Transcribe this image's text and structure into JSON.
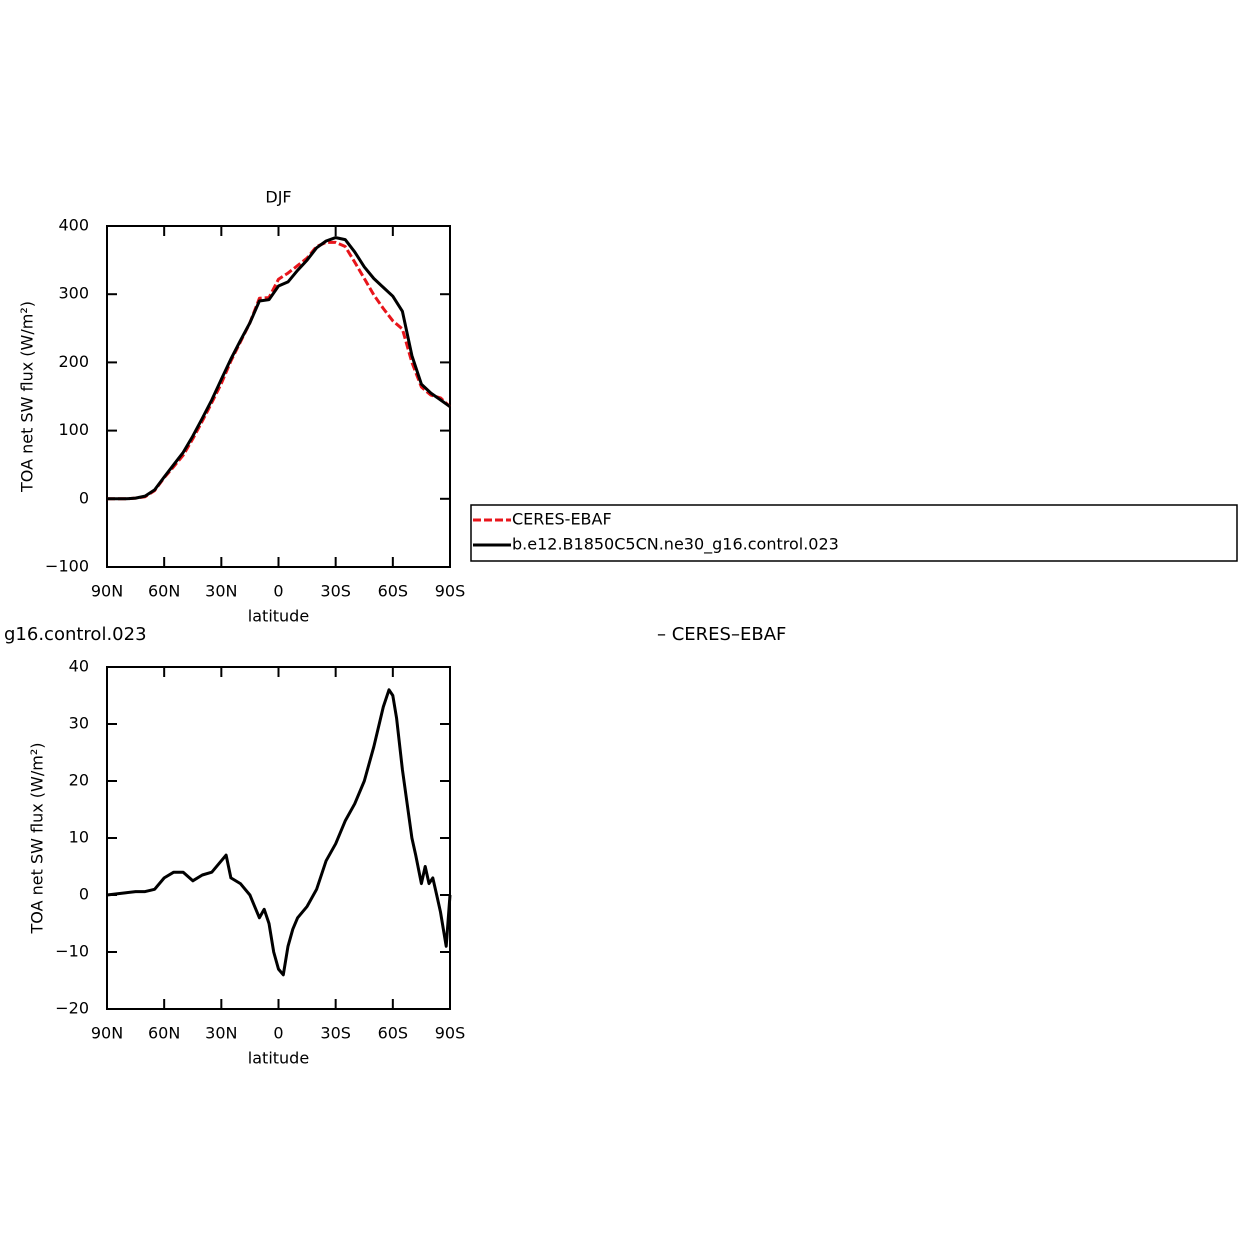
{
  "chart_data": [
    {
      "type": "line",
      "title": "DJF",
      "xlabel": "latitude",
      "ylabel": "TOA net SW flux (W/m²)",
      "x": [
        90,
        85,
        80,
        75,
        70,
        65,
        60,
        55,
        50,
        45,
        40,
        35,
        30,
        25,
        20,
        15,
        10,
        5,
        0,
        -5,
        -10,
        -15,
        -20,
        -25,
        -30,
        -35,
        -40,
        -45,
        -50,
        -55,
        -60,
        -65,
        -70,
        -75,
        -80,
        -85,
        -90
      ],
      "series": [
        {
          "name": "CERES-EBAF",
          "color": "#e8151b",
          "dash": true,
          "values": [
            0,
            0,
            0,
            1,
            3,
            12,
            31,
            47,
            64,
            88,
            114,
            141,
            169,
            202,
            230,
            258,
            294,
            295,
            322,
            331,
            342,
            353,
            370,
            376,
            376,
            370,
            347,
            323,
            299,
            279,
            261,
            249,
            200,
            164,
            152,
            148,
            135
          ]
        },
        {
          "name": "b.e12.B1850C5CN.ne30_g16.control.023",
          "color": "#000000",
          "dash": false,
          "values": [
            0,
            0,
            0,
            1,
            4,
            13,
            32,
            50,
            68,
            92,
            118,
            145,
            175,
            205,
            232,
            258,
            290,
            292,
            312,
            318,
            335,
            350,
            368,
            378,
            383,
            380,
            362,
            340,
            323,
            310,
            297,
            275,
            210,
            168,
            155,
            145,
            135
          ]
        }
      ],
      "xlim": [
        90,
        -90
      ],
      "ylim": [
        -100,
        400
      ],
      "xticks": [
        {
          "value": 90,
          "label": "90N"
        },
        {
          "value": 60,
          "label": "60N"
        },
        {
          "value": 30,
          "label": "30N"
        },
        0,
        {
          "value": -30,
          "label": "30S"
        },
        {
          "value": -60,
          "label": "60S"
        },
        {
          "value": -90,
          "label": "90S"
        }
      ],
      "yticks": [
        {
          "value": -100,
          "label": "−100"
        },
        0,
        100,
        200,
        300,
        400
      ],
      "legend": "outside-right"
    },
    {
      "type": "line",
      "title": "g16.control.023",
      "title_right": "– CERES–EBAF",
      "xlabel": "latitude",
      "ylabel": "TOA net SW flux (W/m²)",
      "x": [
        90,
        85,
        80,
        75,
        70,
        65,
        60,
        55,
        50,
        45,
        40,
        35,
        30,
        27.5,
        25,
        20,
        15,
        10,
        7.5,
        5,
        2.5,
        0,
        -2.5,
        -5,
        -7.5,
        -10,
        -15,
        -20,
        -25,
        -30,
        -35,
        -40,
        -45,
        -50,
        -55,
        -58,
        -60,
        -62,
        -65,
        -70,
        -72,
        -75,
        -77,
        -79,
        -81,
        -83,
        -85,
        -88,
        -90
      ],
      "series": [
        {
          "color": "#000000",
          "values": [
            0,
            0.2,
            0.4,
            0.6,
            0.6,
            1,
            3,
            4,
            4,
            2.5,
            3.5,
            4,
            6,
            7,
            3,
            2,
            0,
            -4,
            -2.5,
            -5,
            -10,
            -13,
            -14,
            -9,
            -6,
            -4,
            -2,
            1,
            6,
            9,
            13,
            16,
            20,
            26,
            33,
            36,
            35,
            31,
            22,
            10,
            7,
            2,
            5,
            2,
            3,
            0,
            -3,
            -9,
            0
          ]
        }
      ],
      "xlim": [
        90,
        -90
      ],
      "ylim": [
        -20,
        40
      ],
      "xticks": [
        {
          "value": 90,
          "label": "90N"
        },
        {
          "value": 60,
          "label": "60N"
        },
        {
          "value": 30,
          "label": "30N"
        },
        0,
        {
          "value": -30,
          "label": "30S"
        },
        {
          "value": -60,
          "label": "60S"
        },
        {
          "value": -90,
          "label": "90S"
        }
      ],
      "yticks": [
        {
          "value": -20,
          "label": "−20"
        },
        {
          "value": -10,
          "label": "−10"
        },
        0,
        10,
        20,
        30,
        40
      ]
    }
  ]
}
